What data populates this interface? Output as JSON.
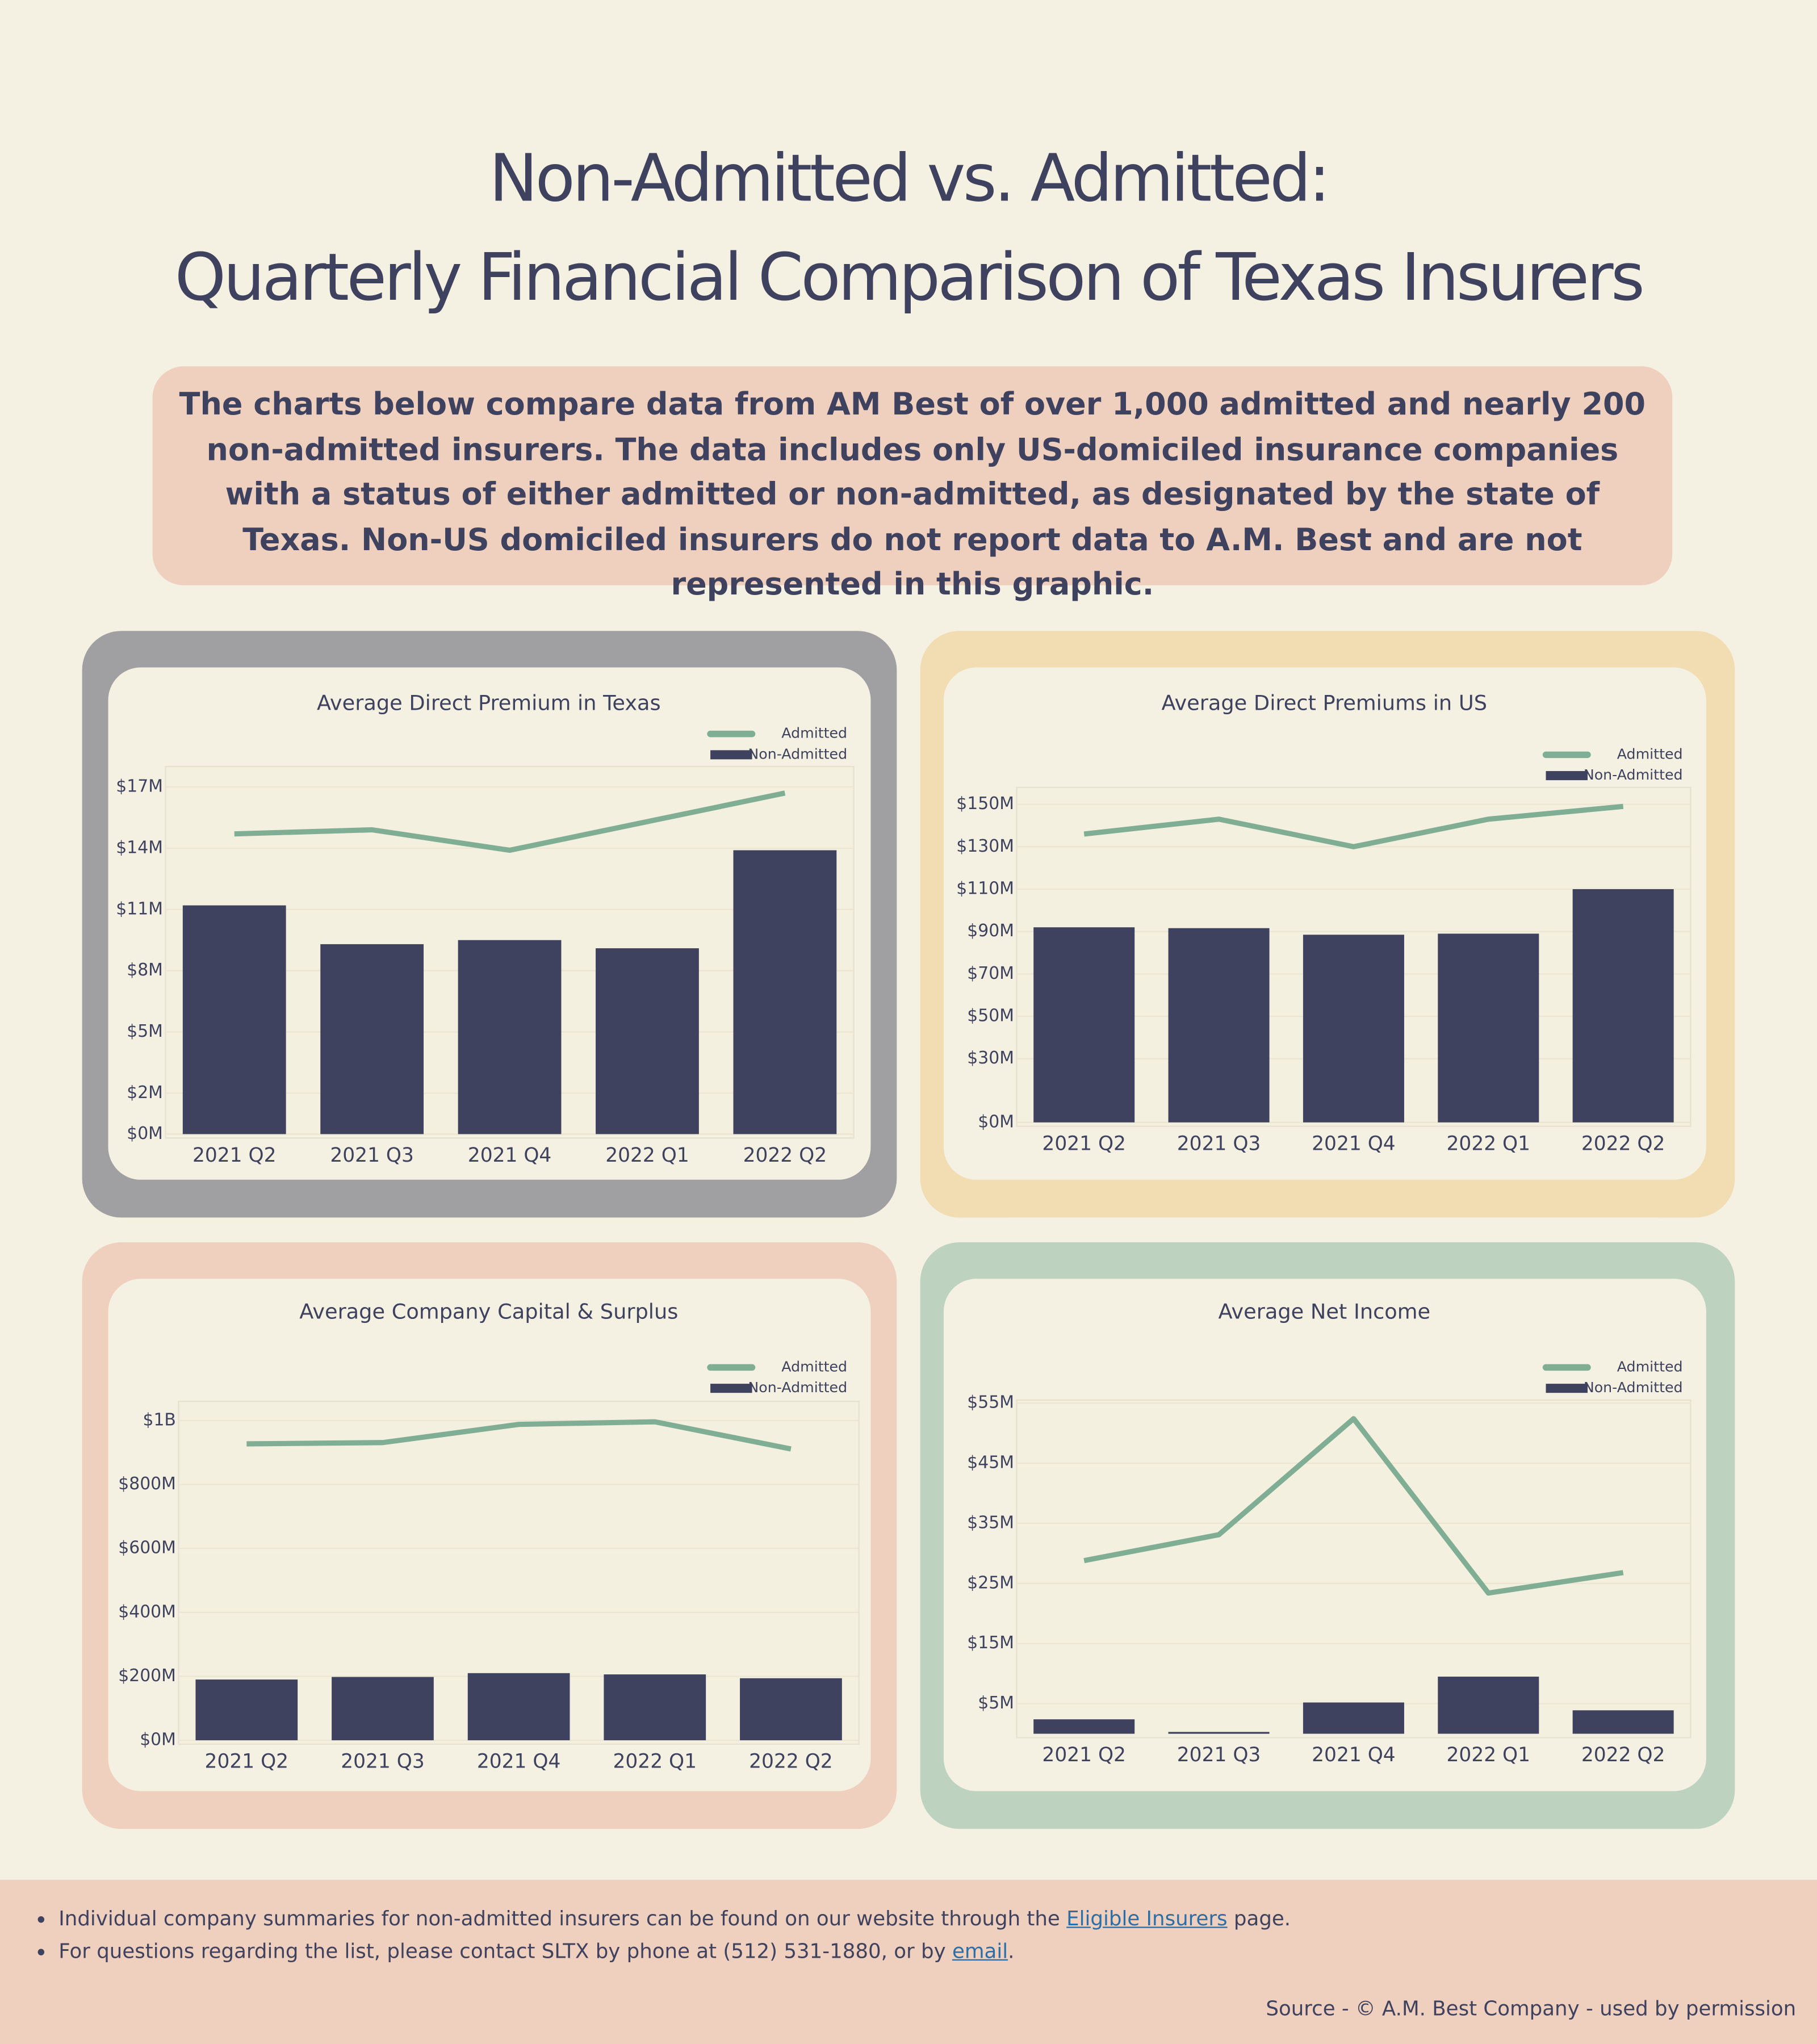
{
  "header": {
    "title_lines": [
      "Non-Admitted vs. Admitted:",
      "Quarterly Financial Comparison of Texas Insurers"
    ]
  },
  "intro": "The charts below compare data from AM Best of over 1,000 admitted and nearly 200 non-admitted insurers. The data includes only US-domiciled insurance companies with a status of either admitted or non-admitted, as designated by the state of Texas. Non-US domiciled insurers do not report data to A.M. Best and are not represented in this graphic.",
  "chart_data": [
    {
      "type": "bar",
      "title": "Average Direct Premium in Texas",
      "categories": [
        "2021 Q2",
        "2021 Q3",
        "2021 Q4",
        "2022 Q1",
        "2022 Q2"
      ],
      "series": [
        {
          "name": "Admitted",
          "type": "line",
          "color": "#7fae94",
          "values": [
            14.7,
            14.9,
            13.9,
            15.3,
            16.7
          ]
        },
        {
          "name": "Non-Admitted",
          "type": "bar",
          "color": "#3f425e",
          "values": [
            11.2,
            9.3,
            9.5,
            9.1,
            13.9
          ]
        }
      ],
      "ylim": [
        0,
        18
      ],
      "yticks": [
        {
          "value": 0,
          "label": "$0M"
        },
        {
          "value": 2,
          "label": "$2M"
        },
        {
          "value": 5,
          "label": "$5M"
        },
        {
          "value": 8,
          "label": "$8M"
        },
        {
          "value": 11,
          "label": "$11M"
        },
        {
          "value": 14,
          "label": "$14M"
        },
        {
          "value": 17,
          "label": "$17M"
        }
      ],
      "grid": true,
      "legend": "top-right"
    },
    {
      "type": "bar",
      "title": "Average Direct Premiums in US",
      "categories": [
        "2021 Q2",
        "2021 Q3",
        "2021 Q4",
        "2022 Q1",
        "2022 Q2"
      ],
      "series": [
        {
          "name": "Admitted",
          "type": "line",
          "color": "#7fae94",
          "values": [
            136,
            143,
            130,
            143,
            149
          ]
        },
        {
          "name": "Non-Admitted",
          "type": "bar",
          "color": "#3f425e",
          "values": [
            92,
            91.6,
            88.5,
            89,
            110
          ]
        }
      ],
      "ylim": [
        0,
        158
      ],
      "yticks": [
        {
          "value": 0,
          "label": "$0M"
        },
        {
          "value": 30,
          "label": "$30M"
        },
        {
          "value": 50,
          "label": "$50M"
        },
        {
          "value": 70,
          "label": "$70M"
        },
        {
          "value": 90,
          "label": "$90M"
        },
        {
          "value": 110,
          "label": "$110M"
        },
        {
          "value": 130,
          "label": "$130M"
        },
        {
          "value": 150,
          "label": "$150M"
        }
      ],
      "grid": true,
      "legend": "top-right"
    },
    {
      "type": "bar",
      "title": "Average Company Capital & Surplus",
      "categories": [
        "2021 Q2",
        "2021 Q3",
        "2021 Q4",
        "2022 Q1",
        "2022 Q2"
      ],
      "series": [
        {
          "name": "Admitted",
          "type": "line",
          "color": "#7fae94",
          "values": [
            927,
            931,
            988,
            996,
            911
          ]
        },
        {
          "name": "Non-Admitted",
          "type": "bar",
          "color": "#3f425e",
          "values": [
            190,
            198,
            210,
            206,
            194
          ]
        }
      ],
      "ylim": [
        0,
        1060
      ],
      "yticks": [
        {
          "value": 0,
          "label": "$0M"
        },
        {
          "value": 200,
          "label": "$200M"
        },
        {
          "value": 400,
          "label": "$400M"
        },
        {
          "value": 600,
          "label": "$600M"
        },
        {
          "value": 800,
          "label": "$800M"
        },
        {
          "value": 1000,
          "label": "$1B"
        }
      ],
      "grid": true,
      "legend": "top-right"
    },
    {
      "type": "bar",
      "title": "Average Net Income",
      "categories": [
        "2021 Q2",
        "2021 Q3",
        "2021 Q4",
        "2022 Q1",
        "2022 Q2"
      ],
      "series": [
        {
          "name": "Admitted",
          "type": "line",
          "color": "#7fae94",
          "values": [
            28.8,
            33.1,
            52.4,
            23.4,
            26.8
          ]
        },
        {
          "name": "Non-Admitted",
          "type": "bar",
          "color": "#3f425e",
          "values": [
            2.4,
            0.3,
            5.2,
            9.5,
            3.9
          ]
        }
      ],
      "ylim": [
        0,
        55.5
      ],
      "yticks": [
        {
          "value": 5,
          "label": "$5M"
        },
        {
          "value": 15,
          "label": "$15M"
        },
        {
          "value": 25,
          "label": "$25M"
        },
        {
          "value": 35,
          "label": "$35M"
        },
        {
          "value": 45,
          "label": "$45M"
        },
        {
          "value": 55,
          "label": "$55M"
        }
      ],
      "grid": true,
      "legend": "top-right"
    }
  ],
  "footer": {
    "items": [
      {
        "before": "Individual company summaries for non-admitted insurers can be found on our website through the ",
        "link": "Eligible Insurers",
        "after": " page."
      },
      {
        "before": "For questions regarding the list, please contact SLTX by phone at (512) 531-1880, or by ",
        "link": "email",
        "after": "."
      }
    ],
    "source": "Source - © A.M. Best Company - used by permission"
  }
}
